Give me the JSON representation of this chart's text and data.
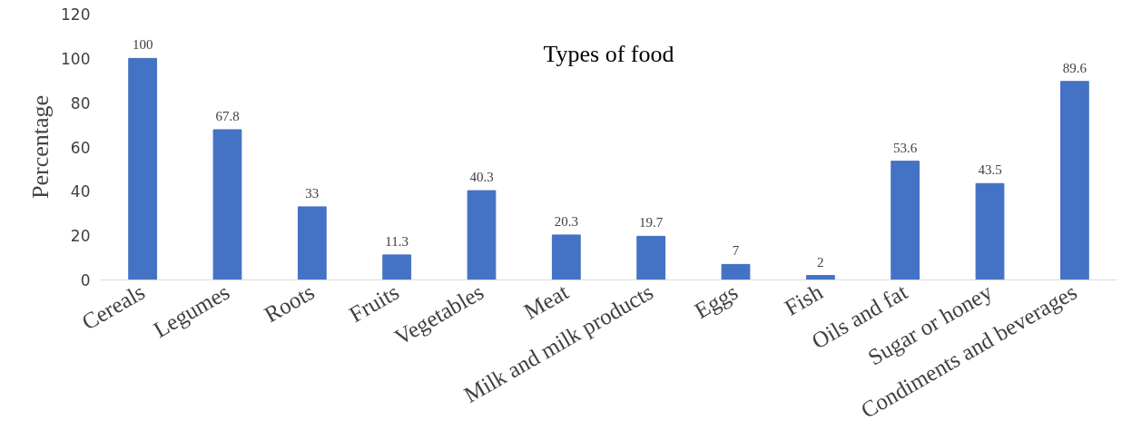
{
  "chart_data": {
    "type": "bar",
    "title": "Types of food",
    "ylabel": "Percentage",
    "categories": [
      "Cereals",
      "Legumes",
      "Roots",
      "Fruits",
      "Vegetables",
      "Meat",
      "Milk and milk products",
      "Eggs",
      "Fish",
      "Oils and fat",
      "Sugar or honey",
      "Condiments and beverages"
    ],
    "values": [
      100,
      67.8,
      33,
      11.3,
      40.3,
      20.3,
      19.7,
      7,
      2,
      53.6,
      43.5,
      89.6
    ],
    "color": "#4472c4",
    "ylim": [
      0,
      120
    ],
    "yticks": [
      0,
      20,
      40,
      60,
      80,
      100,
      120
    ],
    "grid": false,
    "data_labels": true
  }
}
